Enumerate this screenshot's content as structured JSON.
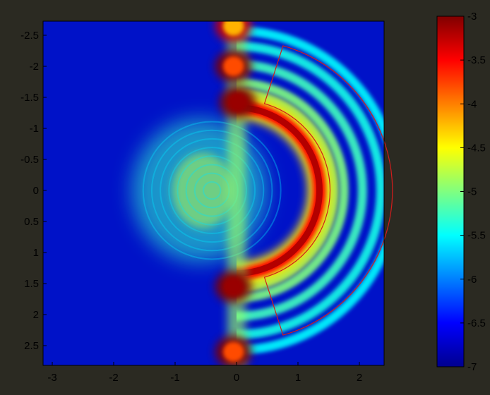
{
  "chart_data": {
    "type": "heatmap",
    "title": "",
    "xlabel": "",
    "ylabel": "",
    "xlim": [
      -3,
      2.85
    ],
    "ylim": [
      2.88,
      -2.88
    ],
    "x_ticks": [
      "-3",
      "-2",
      "-1",
      "0",
      "1",
      "2"
    ],
    "y_ticks": [
      "-2.5",
      "-2",
      "-1.5",
      "-1",
      "-0.5",
      "0",
      "0.5",
      "1",
      "1.5",
      "2",
      "2.5"
    ],
    "colorbar": {
      "colormap": "jet",
      "range": [
        -7,
        -3
      ],
      "ticks": [
        "-3",
        "-3.5",
        "-4",
        "-4.5",
        "-5",
        "-5.5",
        "-6",
        "-6.5",
        "-7"
      ]
    },
    "features": {
      "inner_bright_arc": {
        "center": [
          0,
          0
        ],
        "radius": 1.35,
        "level": -3.2
      },
      "outer_fringe_radii": [
        1.75,
        2.05,
        2.35,
        2.6
      ],
      "hot_lobes": [
        {
          "x": 0.02,
          "y": -1.42,
          "level": -3.1
        },
        {
          "x": -0.05,
          "y": 1.55,
          "level": -3.1
        },
        {
          "x": -0.05,
          "y": 2.6,
          "level": -3.8
        },
        {
          "x": -0.05,
          "y": -2.0,
          "level": -3.8
        },
        {
          "x": -0.05,
          "y": -2.65,
          "level": -4.2
        }
      ],
      "center_glow": {
        "x": -0.6,
        "y": 0,
        "radius": 1.1,
        "level": -5.3
      }
    },
    "annotation_region": {
      "shape": "annular-sector",
      "color": "#d21c1c",
      "inner_radius": 1.47,
      "outer_radius": 2.45,
      "angle_range_deg": [
        -72,
        72
      ]
    }
  }
}
